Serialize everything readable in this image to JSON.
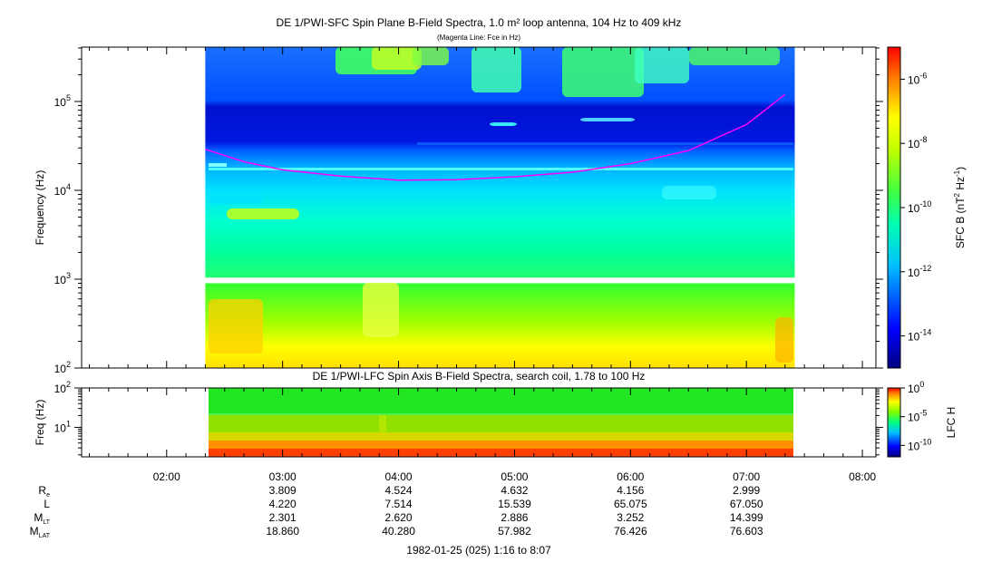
{
  "chart_data": [
    {
      "type": "heatmap",
      "title": "DE 1/PWI-SFC  Spin Plane B-Field Spectra, 1.0 m² loop antenna, 104 Hz to 409 kHz",
      "subtitle": "(Magenta Line: Fce in Hz)",
      "ylabel": "Frequency (Hz)",
      "yscale": "log",
      "ylim": [
        100,
        409000
      ],
      "y_ticks": [
        {
          "value": 100,
          "base": "10",
          "exp": "2"
        },
        {
          "value": 1000,
          "base": "10",
          "exp": "3"
        },
        {
          "value": 10000,
          "base": "10",
          "exp": "4"
        },
        {
          "value": 100000,
          "base": "10",
          "exp": "5"
        }
      ],
      "data_gap_hz": [
        900,
        1040
      ],
      "overlay_line": {
        "color": "#ff00ff",
        "x": [
          "02:20",
          "02:40",
          "03:00",
          "03:30",
          "04:00",
          "04:30",
          "05:00",
          "05:30",
          "06:00",
          "06:30",
          "07:00",
          "07:20"
        ],
        "y": [
          29000,
          21000,
          17000,
          14500,
          13000,
          13200,
          14200,
          16000,
          20000,
          28000,
          55000,
          120000
        ]
      },
      "colorbar": {
        "label": "SFC B (nT² Hz⁻¹)",
        "label_main": "SFC B (nT",
        "label_sup1": "2",
        "label_mid": " Hz",
        "label_sup2": "-1",
        "label_end": ")",
        "scale": "log",
        "range": [
          1e-15,
          1e-05
        ],
        "ticks": [
          {
            "value": 1e-06,
            "base": "10",
            "exp": "-6"
          },
          {
            "value": 1e-08,
            "base": "10",
            "exp": "-8"
          },
          {
            "value": 1e-10,
            "base": "10",
            "exp": "-10"
          },
          {
            "value": 1e-12,
            "base": "10",
            "exp": "-12"
          },
          {
            "value": 1e-14,
            "base": "10",
            "exp": "-14"
          }
        ]
      }
    },
    {
      "type": "heatmap",
      "title": "DE 1/PWI-LFC  Spin Axis B-Field Spectra, search coil, 1.78 to 100 Hz",
      "ylabel": "Freq (Hz)",
      "yscale": "log",
      "ylim": [
        1.78,
        100
      ],
      "y_ticks": [
        {
          "value": 10,
          "base": "10",
          "exp": "1"
        },
        {
          "value": 100,
          "base": "10",
          "exp": "2"
        }
      ],
      "colorbar": {
        "label": "LFC H",
        "scale": "log",
        "range": [
          1e-12,
          1
        ],
        "ticks": [
          {
            "value": 1,
            "base": "10",
            "exp": "0"
          },
          {
            "value": 1e-05,
            "base": "10",
            "exp": "-5"
          },
          {
            "value": 1e-10,
            "base": "10",
            "exp": "-10"
          }
        ]
      }
    }
  ],
  "time_axis": {
    "ticks": [
      "02:00",
      "03:00",
      "04:00",
      "05:00",
      "06:00",
      "07:00",
      "08:00"
    ],
    "data_start": "02:20",
    "data_end": "07:25",
    "footer": "1982-01-25 (025) 1:16 to 8:07"
  },
  "ephemeris": {
    "columns": [
      "03:00",
      "04:00",
      "05:00",
      "06:00",
      "07:00"
    ],
    "rows": [
      {
        "label": "R",
        "sub": "e",
        "values": [
          "3.809",
          "4.524",
          "4.632",
          "4.156",
          "2.999"
        ]
      },
      {
        "label": "L",
        "sub": "",
        "values": [
          "4.220",
          "7.514",
          "15.539",
          "65.075",
          "67.050"
        ]
      },
      {
        "label": "M",
        "sub": "LT",
        "values": [
          "2.301",
          "2.620",
          "2.886",
          "3.252",
          "14.399"
        ]
      },
      {
        "label": "M",
        "sub": "LAT",
        "values": [
          "18.860",
          "40.280",
          "57.982",
          "76.426",
          "76.603"
        ]
      }
    ]
  }
}
